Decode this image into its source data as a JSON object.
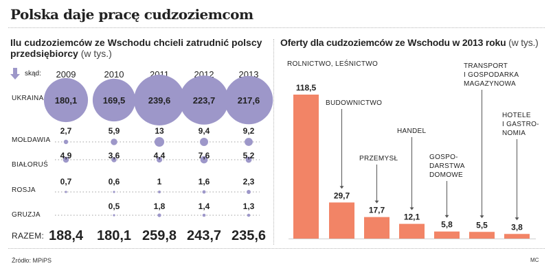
{
  "title": "Polska daje pracę cudzoziemcom",
  "left": {
    "subtitle": "Ilu cudzoziemców ze Wschodu chcieli zatrudnić polscy przedsiębiorcy",
    "unit": "(w tys.)",
    "from_label": "skąd:",
    "total_label": "RAZEM:"
  },
  "right": {
    "subtitle": "Oferty dla cudzoziemców ze Wschodu w 2013 roku",
    "unit": "(w tys.)"
  },
  "source": "Źródło: MPiPS",
  "signature": "MC",
  "colors": {
    "circle": "#9d97c9",
    "bar": "#f28466",
    "text": "#222222"
  },
  "chart_data": [
    {
      "type": "bubble-table",
      "title": "Ilu cudzoziemców ze Wschodu chcieli zatrudnić polscy przedsiębiorcy",
      "unit": "w tys.",
      "years": [
        "2009",
        "2010",
        "2011",
        "2012",
        "2013"
      ],
      "countries": [
        {
          "name": "UKRAINA",
          "values": [
            "180,1",
            "169,5",
            "239,6",
            "223,7",
            "217,6"
          ],
          "nums": [
            180.1,
            169.5,
            239.6,
            223.7,
            217.6
          ]
        },
        {
          "name": "MOŁDAWIA",
          "values": [
            "2,7",
            "5,9",
            "13",
            "9,4",
            "9,2"
          ],
          "nums": [
            2.7,
            5.9,
            13,
            9.4,
            9.2
          ]
        },
        {
          "name": "BIAŁORUŚ",
          "values": [
            "4,9",
            "3,6",
            "4,4",
            "7,6",
            "5,2"
          ],
          "nums": [
            4.9,
            3.6,
            4.4,
            7.6,
            5.2
          ]
        },
        {
          "name": "ROSJA",
          "values": [
            "0,7",
            "0,6",
            "1",
            "1,6",
            "2,3"
          ],
          "nums": [
            0.7,
            0.6,
            1,
            1.6,
            2.3
          ]
        },
        {
          "name": "GRUZJA",
          "values": [
            "",
            "0,5",
            "1,8",
            "1,4",
            "1,3"
          ],
          "nums": [
            null,
            0.5,
            1.8,
            1.4,
            1.3
          ]
        }
      ],
      "totals": [
        "188,4",
        "180,1",
        "259,8",
        "243,7",
        "235,6"
      ]
    },
    {
      "type": "bar",
      "title": "Oferty dla cudzoziemców ze Wschodu w 2013 roku",
      "unit": "w tys.",
      "categories": [
        "ROLNICTWO, LEŚNICTWO",
        "BUDOWNICTWO",
        "PRZEMYSŁ",
        "HANDEL",
        "GOSPO-DARSTWA DOMOWE",
        "TRANSPORT I GOSPODARKA MAGAZYNOWA",
        "HOTELE I GASTRO-NOMIA"
      ],
      "category_lines": [
        [
          "ROLNICTWO, LEŚNICTWO"
        ],
        [
          "BUDOWNICTWO"
        ],
        [
          "PRZEMYSŁ"
        ],
        [
          "HANDEL"
        ],
        [
          "GOSPO-",
          "DARSTWA",
          "DOMOWE"
        ],
        [
          "TRANSPORT",
          "I GOSPODARKA",
          "MAGAZYNOWA"
        ],
        [
          "HOTELE",
          "I GASTRO-",
          "NOMIA"
        ]
      ],
      "values": [
        118.5,
        29.7,
        17.7,
        12.1,
        5.8,
        5.5,
        3.8
      ],
      "value_labels": [
        "118,5",
        "29,7",
        "17,7",
        "12,1",
        "5,8",
        "5,5",
        "3,8"
      ],
      "ylim": [
        0,
        118.5
      ]
    }
  ]
}
